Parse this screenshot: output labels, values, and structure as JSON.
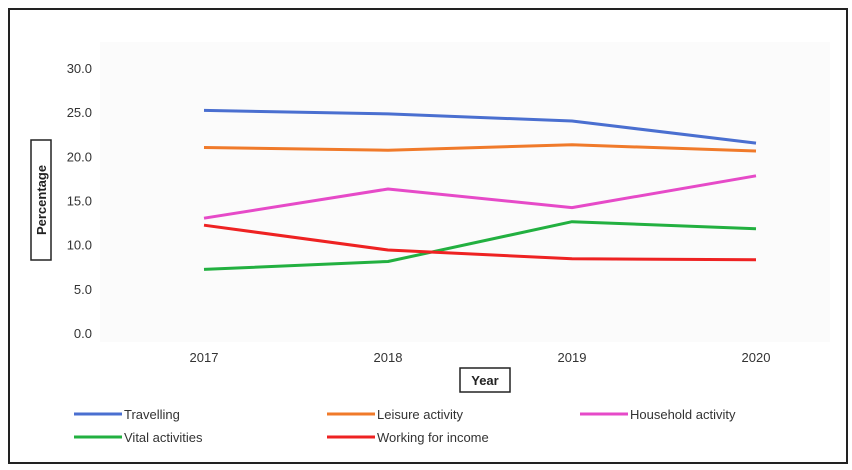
{
  "chart_data": {
    "type": "line",
    "title": "",
    "xlabel": "Year",
    "ylabel": "Percentage",
    "categories": [
      "2017",
      "2018",
      "2019",
      "2020"
    ],
    "y_ticks": [
      "0.0",
      "5.0",
      "10.0",
      "15.0",
      "20.0",
      "25.0",
      "30.0"
    ],
    "ylim": [
      0,
      30
    ],
    "grid": false,
    "legend_position": "bottom",
    "series": [
      {
        "name": "Travelling",
        "color": "#4a6fd0",
        "values": [
          25.2,
          24.8,
          24.0,
          21.5
        ]
      },
      {
        "name": "Leisure activity",
        "color": "#f07a2a",
        "values": [
          21.0,
          20.7,
          21.3,
          20.6
        ]
      },
      {
        "name": "Household activity",
        "color": "#e64ac8",
        "values": [
          13.0,
          16.3,
          14.2,
          17.8
        ]
      },
      {
        "name": "Vital activities",
        "color": "#22b040",
        "values": [
          7.2,
          8.1,
          12.6,
          11.8
        ]
      },
      {
        "name": "Working for income",
        "color": "#ee2222",
        "values": [
          12.2,
          9.4,
          8.4,
          8.3
        ]
      }
    ]
  }
}
